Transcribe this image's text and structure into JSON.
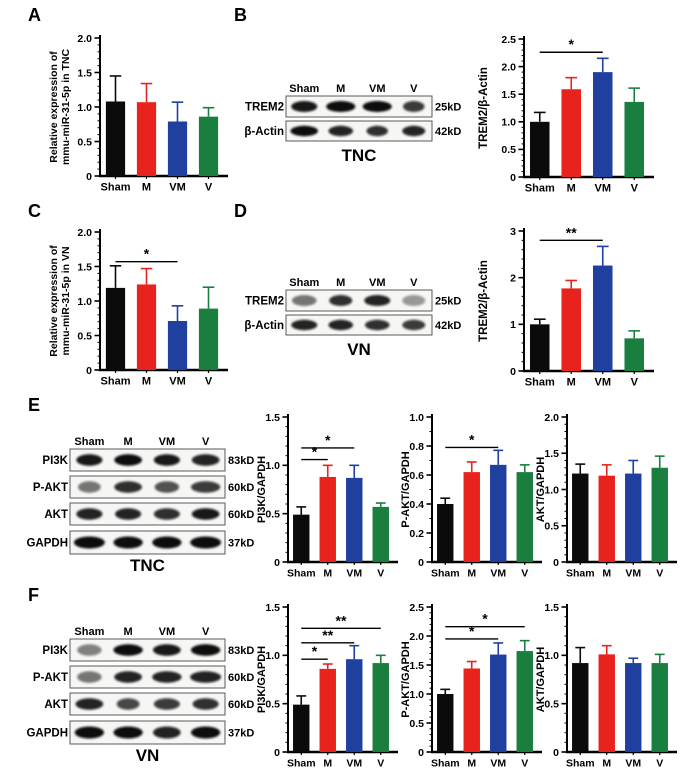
{
  "panels": {
    "a": "A",
    "b": "B",
    "c": "C",
    "d": "D",
    "e": "E",
    "f": "F"
  },
  "groups": [
    "Sham",
    "M",
    "VM",
    "V"
  ],
  "bar_colors": [
    "#0b0b0b",
    "#e8231e",
    "#1f409e",
    "#1a7f3e"
  ],
  "chart_data": [
    {
      "id": "A",
      "type": "bar",
      "panel": "A",
      "title": "",
      "ylabel": "Relative expression of mmu-miR-31-5p in TNC",
      "ylabel_lines": [
        "Relative expression of",
        "mmu-miR-31-5p in TNC"
      ],
      "categories": [
        "Sham",
        "M",
        "VM",
        "V"
      ],
      "values": [
        1.08,
        1.07,
        0.79,
        0.86
      ],
      "errors": [
        0.37,
        0.27,
        0.28,
        0.13
      ],
      "ylim": [
        0,
        2.0
      ],
      "yticks": [
        0,
        0.5,
        1.0,
        1.5,
        2.0
      ],
      "ytick_labels": [
        "0",
        "0.5",
        "1.0",
        "1.5",
        "2.0"
      ],
      "sig": []
    },
    {
      "id": "B",
      "type": "bar",
      "panel": "B",
      "title": "",
      "ylabel": "TREM2/β-Actin",
      "ylabel_lines": [
        "TREM2/β-Actin"
      ],
      "categories": [
        "Sham",
        "M",
        "VM",
        "V"
      ],
      "values": [
        1.0,
        1.59,
        1.9,
        1.36
      ],
      "errors": [
        0.17,
        0.21,
        0.25,
        0.25
      ],
      "ylim": [
        0,
        2.5
      ],
      "yticks": [
        0,
        0.5,
        1.0,
        1.5,
        2.0,
        2.5
      ],
      "ytick_labels": [
        "0",
        "0.5",
        "1.0",
        "1.5",
        "2.0",
        "2.5"
      ],
      "sig": [
        {
          "i1": 0,
          "i2": 2,
          "y": 2.26,
          "label": "*"
        }
      ]
    },
    {
      "id": "C",
      "type": "bar",
      "panel": "C",
      "title": "",
      "ylabel": "Relative expression of mmu-miR-31-5p in VN",
      "ylabel_lines": [
        "Relative expression of",
        "mmu-miR-31-5p in VN"
      ],
      "categories": [
        "Sham",
        "M",
        "VM",
        "V"
      ],
      "values": [
        1.19,
        1.24,
        0.71,
        0.89
      ],
      "errors": [
        0.32,
        0.23,
        0.22,
        0.31
      ],
      "ylim": [
        0,
        2.0
      ],
      "yticks": [
        0,
        0.5,
        1.0,
        1.5,
        2.0
      ],
      "ytick_labels": [
        "0",
        "0.5",
        "1.0",
        "1.5",
        "2.0"
      ],
      "sig": [
        {
          "i1": 0,
          "i2": 2,
          "y": 1.57,
          "label": "*"
        }
      ]
    },
    {
      "id": "D",
      "type": "bar",
      "panel": "D",
      "title": "",
      "ylabel": "TREM2/β-Actin",
      "ylabel_lines": [
        "TREM2/β-Actin"
      ],
      "categories": [
        "Sham",
        "M",
        "VM",
        "V"
      ],
      "values": [
        1.0,
        1.77,
        2.26,
        0.7
      ],
      "errors": [
        0.11,
        0.17,
        0.41,
        0.16
      ],
      "ylim": [
        0,
        3.0
      ],
      "yticks": [
        0,
        1,
        2,
        3
      ],
      "ytick_labels": [
        "0",
        "1",
        "2",
        "3"
      ],
      "sig": [
        {
          "i1": 0,
          "i2": 2,
          "y": 2.8,
          "label": "**"
        }
      ]
    },
    {
      "id": "E1",
      "type": "bar",
      "panel": "E",
      "title": "",
      "ylabel": "PI3K/GAPDH",
      "ylabel_lines": [
        "PI3K/GAPDH"
      ],
      "categories": [
        "Sham",
        "M",
        "VM",
        "V"
      ],
      "values": [
        0.49,
        0.88,
        0.87,
        0.57
      ],
      "errors": [
        0.08,
        0.12,
        0.13,
        0.04
      ],
      "ylim": [
        0,
        1.5
      ],
      "yticks": [
        0,
        0.5,
        1.0,
        1.5
      ],
      "ytick_labels": [
        "0",
        "0.5",
        "1.0",
        "1.5"
      ],
      "sig": [
        {
          "i1": 0,
          "i2": 1,
          "y": 1.06,
          "label": "*"
        },
        {
          "i1": 0,
          "i2": 2,
          "y": 1.18,
          "label": "*"
        }
      ]
    },
    {
      "id": "E2",
      "type": "bar",
      "panel": "E",
      "title": "",
      "ylabel": "P-AKT/GAPDH",
      "ylabel_lines": [
        "P-AKT/GAPDH"
      ],
      "categories": [
        "Sham",
        "M",
        "VM",
        "V"
      ],
      "values": [
        0.4,
        0.62,
        0.67,
        0.62
      ],
      "errors": [
        0.04,
        0.07,
        0.1,
        0.05
      ],
      "ylim": [
        0,
        1.0
      ],
      "yticks": [
        0,
        0.2,
        0.4,
        0.6,
        0.8,
        1.0
      ],
      "ytick_labels": [
        "0",
        "0.2",
        "0.4",
        "0.6",
        "0.8",
        "1.0"
      ],
      "sig": [
        {
          "i1": 0,
          "i2": 2,
          "y": 0.79,
          "label": "*"
        }
      ]
    },
    {
      "id": "E3",
      "type": "bar",
      "panel": "E",
      "title": "",
      "ylabel": "AKT/GAPDH",
      "ylabel_lines": [
        "AKT/GAPDH"
      ],
      "categories": [
        "Sham",
        "M",
        "VM",
        "V"
      ],
      "values": [
        1.22,
        1.19,
        1.22,
        1.3
      ],
      "errors": [
        0.13,
        0.15,
        0.18,
        0.16
      ],
      "ylim": [
        0,
        2.0
      ],
      "yticks": [
        0,
        0.5,
        1.0,
        1.5,
        2.0
      ],
      "ytick_labels": [
        "0",
        "0.5",
        "1.0",
        "1.5",
        "2.0"
      ],
      "sig": []
    },
    {
      "id": "F1",
      "type": "bar",
      "panel": "F",
      "title": "",
      "ylabel": "PI3K/GAPDH",
      "ylabel_lines": [
        "PI3K/GAPDH"
      ],
      "categories": [
        "Sham",
        "M",
        "VM",
        "V"
      ],
      "values": [
        0.49,
        0.86,
        0.96,
        0.92
      ],
      "errors": [
        0.09,
        0.05,
        0.14,
        0.08
      ],
      "ylim": [
        0,
        1.5
      ],
      "yticks": [
        0,
        0.5,
        1.0,
        1.5
      ],
      "ytick_labels": [
        "0",
        "0.5",
        "1.0",
        "1.5"
      ],
      "sig": [
        {
          "i1": 0,
          "i2": 1,
          "y": 0.96,
          "label": "*"
        },
        {
          "i1": 0,
          "i2": 2,
          "y": 1.13,
          "label": "**"
        },
        {
          "i1": 0,
          "i2": 3,
          "y": 1.28,
          "label": "**"
        }
      ]
    },
    {
      "id": "F2",
      "type": "bar",
      "panel": "F",
      "title": "",
      "ylabel": "P-AKT/GAPDH",
      "ylabel_lines": [
        "P-AKT/GAPDH"
      ],
      "categories": [
        "Sham",
        "M",
        "VM",
        "V"
      ],
      "values": [
        1.0,
        1.44,
        1.68,
        1.74
      ],
      "errors": [
        0.08,
        0.12,
        0.2,
        0.18
      ],
      "ylim": [
        0,
        2.5
      ],
      "yticks": [
        0,
        0.5,
        1.0,
        1.5,
        2.0,
        2.5
      ],
      "ytick_labels": [
        "0",
        "0.5",
        "1.0",
        "1.5",
        "2.0",
        "2.5"
      ],
      "sig": [
        {
          "i1": 0,
          "i2": 2,
          "y": 1.95,
          "label": "*"
        },
        {
          "i1": 0,
          "i2": 3,
          "y": 2.16,
          "label": "*"
        }
      ]
    },
    {
      "id": "F3",
      "type": "bar",
      "panel": "F",
      "title": "",
      "ylabel": "AKT/GAPDH",
      "ylabel_lines": [
        "AKT/GAPDH"
      ],
      "categories": [
        "Sham",
        "M",
        "VM",
        "V"
      ],
      "values": [
        0.92,
        1.01,
        0.92,
        0.92
      ],
      "errors": [
        0.16,
        0.09,
        0.05,
        0.09
      ],
      "ylim": [
        0,
        1.5
      ],
      "yticks": [
        0,
        0.5,
        1.0,
        1.5
      ],
      "ytick_labels": [
        "0",
        "0.5",
        "1.0",
        "1.5"
      ],
      "sig": []
    }
  ],
  "blots": [
    {
      "id": "B",
      "panel": "B",
      "caption": "TNC",
      "lanes": [
        "Sham",
        "M",
        "VM",
        "V"
      ],
      "rows": [
        {
          "label": "TREM2",
          "kd": "25kD",
          "intensity": [
            0.95,
            1,
            1,
            0.8
          ],
          "width": [
            0.85,
            0.95,
            0.95,
            0.7
          ]
        },
        {
          "label": "β-Actin",
          "kd": "42kD",
          "intensity": [
            1,
            0.9,
            0.85,
            0.9
          ],
          "width": [
            0.9,
            0.8,
            0.7,
            0.75
          ]
        }
      ]
    },
    {
      "id": "D",
      "panel": "D",
      "caption": "VN",
      "lanes": [
        "Sham",
        "M",
        "VM",
        "V"
      ],
      "rows": [
        {
          "label": "TREM2",
          "kd": "25kD",
          "intensity": [
            0.55,
            0.85,
            0.9,
            0.4
          ],
          "width": [
            0.8,
            0.75,
            0.85,
            0.75
          ]
        },
        {
          "label": "β-Actin",
          "kd": "42kD",
          "intensity": [
            0.9,
            0.9,
            0.85,
            0.8
          ],
          "width": [
            0.85,
            0.8,
            0.8,
            0.75
          ]
        }
      ]
    },
    {
      "id": "E",
      "panel": "E",
      "caption": "TNC",
      "lanes": [
        "Sham",
        "M",
        "VM",
        "V"
      ],
      "rows": [
        {
          "label": "PI3K",
          "kd": "83kD",
          "intensity": [
            0.95,
            1,
            0.95,
            0.9
          ],
          "width": [
            0.8,
            0.85,
            0.8,
            0.85
          ]
        },
        {
          "label": "P-AKT",
          "kd": "60kD",
          "intensity": [
            0.55,
            0.85,
            0.7,
            0.8
          ],
          "width": [
            0.7,
            0.85,
            0.75,
            0.9
          ]
        },
        {
          "label": "AKT",
          "kd": "60kD",
          "intensity": [
            0.9,
            0.9,
            0.85,
            0.95
          ],
          "width": [
            0.8,
            0.8,
            0.8,
            0.85
          ]
        },
        {
          "label": "GAPDH",
          "kd": "37kD",
          "intensity": [
            1,
            1,
            1,
            1
          ],
          "width": [
            0.95,
            0.9,
            0.9,
            0.95
          ]
        }
      ]
    },
    {
      "id": "F",
      "panel": "F",
      "caption": "VN",
      "lanes": [
        "Sham",
        "M",
        "VM",
        "V"
      ],
      "rows": [
        {
          "label": "PI3K",
          "kd": "83kD",
          "intensity": [
            0.5,
            1,
            0.95,
            1
          ],
          "width": [
            0.75,
            0.9,
            0.85,
            0.9
          ]
        },
        {
          "label": "P-AKT",
          "kd": "60kD",
          "intensity": [
            0.55,
            0.9,
            0.9,
            0.9
          ],
          "width": [
            0.75,
            0.85,
            0.9,
            0.95
          ]
        },
        {
          "label": "AKT",
          "kd": "60kD",
          "intensity": [
            0.9,
            0.75,
            0.8,
            0.85
          ],
          "width": [
            0.85,
            0.7,
            0.8,
            0.8
          ]
        },
        {
          "label": "GAPDH",
          "kd": "37kD",
          "intensity": [
            1,
            1,
            0.9,
            1
          ],
          "width": [
            0.9,
            0.9,
            0.85,
            0.9
          ]
        }
      ]
    }
  ]
}
